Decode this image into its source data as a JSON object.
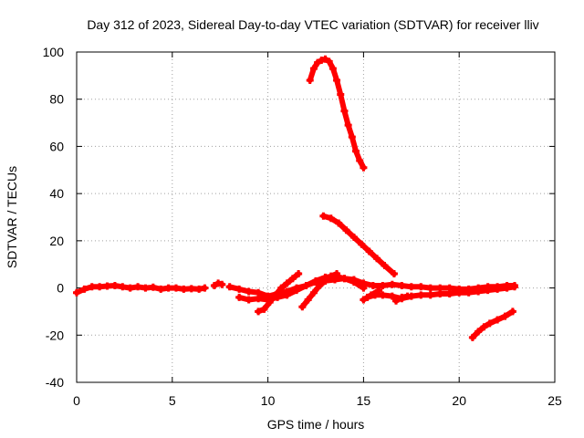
{
  "chart_data": {
    "type": "scatter",
    "title": "Day 312 of 2023, Sidereal Day-to-day VTEC variation (SDTVAR) for receiver lliv",
    "xlabel": "GPS time / hours",
    "ylabel": "SDTVAR / TECUs",
    "xlim": [
      0,
      25
    ],
    "ylim": [
      -40,
      100
    ],
    "xticks": [
      0,
      5,
      10,
      15,
      20,
      25
    ],
    "yticks": [
      -40,
      -20,
      0,
      20,
      40,
      60,
      80,
      100
    ],
    "grid": true,
    "series_color": "#ff0000",
    "series": [
      {
        "x": [
          0.0,
          0.4,
          0.8,
          1.2,
          1.6,
          2.0,
          2.4,
          2.8,
          3.2,
          3.6,
          4.0,
          4.4,
          4.8,
          5.2,
          5.6,
          6.0,
          6.4,
          6.7
        ],
        "y": [
          -2.0,
          -0.5,
          0.5,
          0.5,
          0.8,
          1.0,
          0.5,
          0.0,
          0.5,
          0.0,
          0.3,
          -0.5,
          0.0,
          0.0,
          -0.5,
          -0.3,
          -0.5,
          0.0
        ]
      },
      {
        "x": [
          7.2,
          7.4,
          7.6
        ],
        "y": [
          1.0,
          2.0,
          1.5
        ]
      },
      {
        "x": [
          8.0,
          8.5,
          9.0,
          9.5,
          10.0,
          10.5,
          11.0,
          11.5,
          12.0,
          12.5,
          13.0,
          13.5,
          14.0,
          14.5,
          15.0,
          15.5,
          16.0,
          16.5,
          17.0,
          17.5,
          18.0,
          18.5,
          19.0,
          19.5,
          20.0,
          20.5,
          21.0,
          21.5,
          22.0,
          22.5,
          22.9
        ],
        "y": [
          0.5,
          -0.5,
          -1.5,
          -2.0,
          -3.5,
          -2.5,
          -1.5,
          0.0,
          1.0,
          2.5,
          3.0,
          3.5,
          4.0,
          3.5,
          2.0,
          1.0,
          1.0,
          1.5,
          1.0,
          0.5,
          0.5,
          0.0,
          0.0,
          0.0,
          -0.5,
          -0.5,
          0.0,
          0.5,
          0.5,
          1.0,
          1.0
        ]
      },
      {
        "x": [
          8.5,
          9.0,
          9.5,
          10.0,
          10.5,
          11.0,
          11.5,
          12.0,
          12.5,
          13.0,
          13.5,
          14.0,
          14.5,
          15.0
        ],
        "y": [
          -4.0,
          -5.0,
          -4.5,
          -5.0,
          -4.0,
          -3.0,
          -1.0,
          1.0,
          3.0,
          4.5,
          5.0,
          4.0,
          2.5,
          0.0
        ]
      },
      {
        "x": [
          9.5,
          9.8,
          10.1,
          10.4,
          10.7,
          11.0,
          11.3,
          11.6
        ],
        "y": [
          -10.0,
          -9.0,
          -6.0,
          -3.0,
          0.0,
          2.0,
          4.0,
          6.0
        ]
      },
      {
        "x": [
          11.8,
          12.1,
          12.4,
          12.7,
          13.0,
          13.3,
          13.6
        ],
        "y": [
          -8.0,
          -5.0,
          -2.0,
          1.0,
          3.0,
          5.0,
          6.0
        ]
      },
      {
        "x": [
          15.2,
          15.6,
          16.0,
          16.5,
          17.0,
          17.5,
          18.0,
          18.5,
          19.0,
          19.5,
          20.0,
          20.5,
          21.0,
          21.5,
          22.0,
          22.5,
          22.9
        ],
        "y": [
          -4.0,
          -3.0,
          -3.0,
          -3.5,
          -4.5,
          -3.5,
          -3.0,
          -3.0,
          -2.5,
          -2.5,
          -2.0,
          -2.0,
          -1.5,
          -1.0,
          -0.5,
          0.0,
          0.5
        ]
      },
      {
        "x": [
          15.0,
          15.4,
          15.8
        ],
        "y": [
          -5.0,
          -3.0,
          -1.0
        ]
      },
      {
        "x": [
          16.7,
          17.0,
          17.3
        ],
        "y": [
          -5.5,
          -4.0,
          -3.5
        ]
      },
      {
        "x": [
          12.2,
          12.4,
          12.6,
          12.8,
          13.0,
          13.2,
          13.4,
          13.6,
          13.8,
          14.0,
          14.2,
          14.4,
          14.6,
          14.8,
          15.0
        ],
        "y": [
          88.0,
          93.0,
          95.5,
          96.5,
          97.0,
          96.0,
          93.0,
          88.0,
          82.0,
          75.0,
          69.0,
          64.0,
          58.0,
          54.0,
          51.0
        ]
      },
      {
        "x": [
          12.9,
          13.3,
          13.7,
          14.1,
          14.5,
          14.9,
          15.3,
          15.7,
          16.1,
          16.6
        ],
        "y": [
          30.5,
          29.5,
          27.5,
          24.5,
          21.5,
          18.5,
          15.5,
          12.5,
          9.5,
          6.0
        ]
      },
      {
        "x": [
          20.7,
          21.0,
          21.3,
          21.6,
          22.0,
          22.4,
          22.8
        ],
        "y": [
          -21.0,
          -18.5,
          -16.5,
          -15.0,
          -13.5,
          -12.0,
          -10.0
        ]
      }
    ]
  }
}
